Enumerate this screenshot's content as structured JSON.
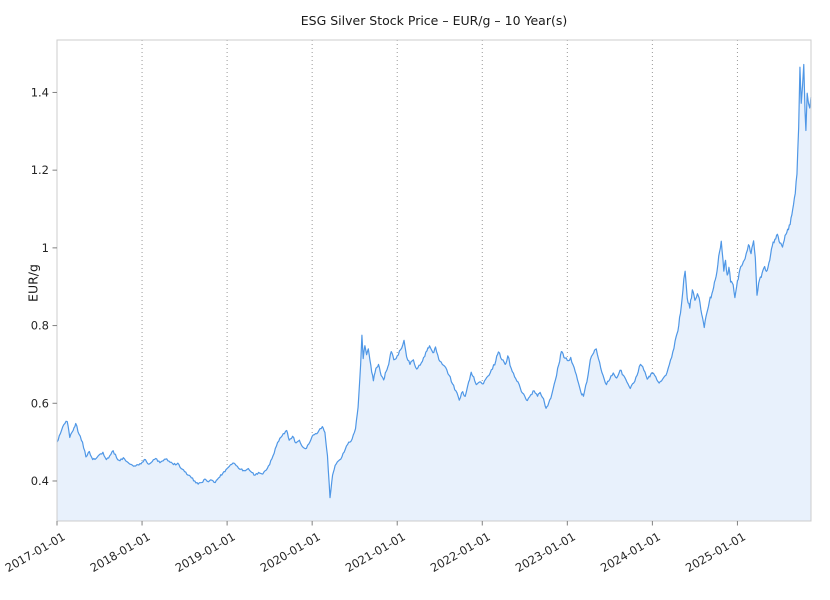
{
  "chart_data": {
    "type": "area",
    "title": "ESG Silver Stock Price – EUR/g – 10 Year(s)",
    "ylabel": "EUR/g",
    "xlabel": "",
    "grid": "vertical-dotted",
    "legend": "none",
    "xlim": [
      2017.0,
      2025.865
    ],
    "ylim": [
      0.297,
      1.535
    ],
    "x_ticks": [
      {
        "t": 2017,
        "label": "2017-01-01"
      },
      {
        "t": 2018,
        "label": "2018-01-01"
      },
      {
        "t": 2019,
        "label": "2019-01-01"
      },
      {
        "t": 2020,
        "label": "2020-01-01"
      },
      {
        "t": 2021,
        "label": "2021-01-01"
      },
      {
        "t": 2022,
        "label": "2022-01-01"
      },
      {
        "t": 2023,
        "label": "2023-01-01"
      },
      {
        "t": 2024,
        "label": "2024-01-01"
      },
      {
        "t": 2025,
        "label": "2025-01-01"
      }
    ],
    "y_ticks": [
      {
        "v": 0.4,
        "label": "0.4"
      },
      {
        "v": 0.6,
        "label": "0.6"
      },
      {
        "v": 0.8,
        "label": "0.8"
      },
      {
        "v": 1.0,
        "label": "1"
      },
      {
        "v": 1.2,
        "label": "1.2"
      },
      {
        "v": 1.4,
        "label": "1.4"
      }
    ],
    "colors": {
      "line": "#4f97e6",
      "fill": "#e8f1fc",
      "grid": "#999999",
      "spine": "#cccccc",
      "tick": "#808080",
      "text": "#262626"
    },
    "series": [
      {
        "name": "ESG Silver Stock Price (EUR/g)",
        "x_unit": "decimal_year",
        "points": [
          [
            2017.0,
            0.5
          ],
          [
            2017.04,
            0.522
          ],
          [
            2017.08,
            0.545
          ],
          [
            2017.12,
            0.553
          ],
          [
            2017.15,
            0.512
          ],
          [
            2017.19,
            0.53
          ],
          [
            2017.22,
            0.548
          ],
          [
            2017.26,
            0.52
          ],
          [
            2017.3,
            0.5
          ],
          [
            2017.34,
            0.462
          ],
          [
            2017.38,
            0.476
          ],
          [
            2017.42,
            0.455
          ],
          [
            2017.46,
            0.458
          ],
          [
            2017.5,
            0.468
          ],
          [
            2017.54,
            0.474
          ],
          [
            2017.58,
            0.455
          ],
          [
            2017.62,
            0.465
          ],
          [
            2017.66,
            0.478
          ],
          [
            2017.7,
            0.46
          ],
          [
            2017.74,
            0.452
          ],
          [
            2017.78,
            0.46
          ],
          [
            2017.82,
            0.45
          ],
          [
            2017.86,
            0.443
          ],
          [
            2017.9,
            0.438
          ],
          [
            2017.95,
            0.442
          ],
          [
            2018.0,
            0.448
          ],
          [
            2018.04,
            0.455
          ],
          [
            2018.08,
            0.443
          ],
          [
            2018.12,
            0.45
          ],
          [
            2018.16,
            0.458
          ],
          [
            2018.21,
            0.447
          ],
          [
            2018.25,
            0.452
          ],
          [
            2018.29,
            0.457
          ],
          [
            2018.33,
            0.448
          ],
          [
            2018.37,
            0.442
          ],
          [
            2018.42,
            0.446
          ],
          [
            2018.46,
            0.432
          ],
          [
            2018.5,
            0.424
          ],
          [
            2018.54,
            0.415
          ],
          [
            2018.58,
            0.408
          ],
          [
            2018.62,
            0.4
          ],
          [
            2018.66,
            0.392
          ],
          [
            2018.7,
            0.396
          ],
          [
            2018.74,
            0.405
          ],
          [
            2018.78,
            0.398
          ],
          [
            2018.82,
            0.402
          ],
          [
            2018.86,
            0.396
          ],
          [
            2018.9,
            0.408
          ],
          [
            2018.95,
            0.42
          ],
          [
            2019.0,
            0.432
          ],
          [
            2019.04,
            0.442
          ],
          [
            2019.08,
            0.446
          ],
          [
            2019.12,
            0.438
          ],
          [
            2019.16,
            0.43
          ],
          [
            2019.21,
            0.426
          ],
          [
            2019.25,
            0.432
          ],
          [
            2019.29,
            0.422
          ],
          [
            2019.33,
            0.415
          ],
          [
            2019.37,
            0.422
          ],
          [
            2019.42,
            0.418
          ],
          [
            2019.46,
            0.428
          ],
          [
            2019.5,
            0.442
          ],
          [
            2019.54,
            0.465
          ],
          [
            2019.58,
            0.49
          ],
          [
            2019.62,
            0.51
          ],
          [
            2019.66,
            0.522
          ],
          [
            2019.7,
            0.53
          ],
          [
            2019.73,
            0.505
          ],
          [
            2019.77,
            0.515
          ],
          [
            2019.81,
            0.498
          ],
          [
            2019.85,
            0.505
          ],
          [
            2019.88,
            0.49
          ],
          [
            2019.92,
            0.483
          ],
          [
            2019.96,
            0.495
          ],
          [
            2020.0,
            0.515
          ],
          [
            2020.04,
            0.522
          ],
          [
            2020.08,
            0.53
          ],
          [
            2020.12,
            0.54
          ],
          [
            2020.15,
            0.525
          ],
          [
            2020.18,
            0.465
          ],
          [
            2020.21,
            0.357
          ],
          [
            2020.24,
            0.415
          ],
          [
            2020.27,
            0.44
          ],
          [
            2020.31,
            0.452
          ],
          [
            2020.35,
            0.462
          ],
          [
            2020.39,
            0.482
          ],
          [
            2020.43,
            0.5
          ],
          [
            2020.47,
            0.508
          ],
          [
            2020.51,
            0.535
          ],
          [
            2020.54,
            0.59
          ],
          [
            2020.57,
            0.7
          ],
          [
            2020.585,
            0.775
          ],
          [
            2020.6,
            0.715
          ],
          [
            2020.62,
            0.748
          ],
          [
            2020.64,
            0.725
          ],
          [
            2020.66,
            0.74
          ],
          [
            2020.68,
            0.71
          ],
          [
            2020.7,
            0.68
          ],
          [
            2020.72,
            0.658
          ],
          [
            2020.75,
            0.69
          ],
          [
            2020.78,
            0.7
          ],
          [
            2020.81,
            0.672
          ],
          [
            2020.84,
            0.66
          ],
          [
            2020.87,
            0.682
          ],
          [
            2020.9,
            0.7
          ],
          [
            2020.93,
            0.733
          ],
          [
            2020.96,
            0.712
          ],
          [
            2021.0,
            0.722
          ],
          [
            2021.04,
            0.738
          ],
          [
            2021.08,
            0.762
          ],
          [
            2021.11,
            0.72
          ],
          [
            2021.15,
            0.7
          ],
          [
            2021.19,
            0.712
          ],
          [
            2021.23,
            0.688
          ],
          [
            2021.27,
            0.698
          ],
          [
            2021.31,
            0.718
          ],
          [
            2021.35,
            0.735
          ],
          [
            2021.38,
            0.748
          ],
          [
            2021.42,
            0.73
          ],
          [
            2021.45,
            0.745
          ],
          [
            2021.49,
            0.712
          ],
          [
            2021.53,
            0.7
          ],
          [
            2021.57,
            0.692
          ],
          [
            2021.61,
            0.672
          ],
          [
            2021.65,
            0.65
          ],
          [
            2021.69,
            0.632
          ],
          [
            2021.73,
            0.608
          ],
          [
            2021.77,
            0.63
          ],
          [
            2021.8,
            0.618
          ],
          [
            2021.84,
            0.655
          ],
          [
            2021.87,
            0.68
          ],
          [
            2021.9,
            0.668
          ],
          [
            2021.93,
            0.648
          ],
          [
            2021.97,
            0.655
          ],
          [
            2022.0,
            0.65
          ],
          [
            2022.04,
            0.662
          ],
          [
            2022.08,
            0.672
          ],
          [
            2022.12,
            0.688
          ],
          [
            2022.16,
            0.71
          ],
          [
            2022.19,
            0.732
          ],
          [
            2022.23,
            0.712
          ],
          [
            2022.27,
            0.7
          ],
          [
            2022.3,
            0.722
          ],
          [
            2022.34,
            0.69
          ],
          [
            2022.38,
            0.668
          ],
          [
            2022.42,
            0.655
          ],
          [
            2022.46,
            0.63
          ],
          [
            2022.5,
            0.618
          ],
          [
            2022.53,
            0.607
          ],
          [
            2022.57,
            0.622
          ],
          [
            2022.61,
            0.632
          ],
          [
            2022.65,
            0.618
          ],
          [
            2022.68,
            0.628
          ],
          [
            2022.72,
            0.612
          ],
          [
            2022.75,
            0.587
          ],
          [
            2022.78,
            0.6
          ],
          [
            2022.82,
            0.625
          ],
          [
            2022.86,
            0.66
          ],
          [
            2022.9,
            0.7
          ],
          [
            2022.93,
            0.733
          ],
          [
            2022.96,
            0.718
          ],
          [
            2023.0,
            0.71
          ],
          [
            2023.04,
            0.718
          ],
          [
            2023.08,
            0.692
          ],
          [
            2023.12,
            0.66
          ],
          [
            2023.16,
            0.628
          ],
          [
            2023.19,
            0.618
          ],
          [
            2023.23,
            0.655
          ],
          [
            2023.27,
            0.712
          ],
          [
            2023.31,
            0.73
          ],
          [
            2023.34,
            0.74
          ],
          [
            2023.38,
            0.705
          ],
          [
            2023.42,
            0.672
          ],
          [
            2023.46,
            0.648
          ],
          [
            2023.5,
            0.662
          ],
          [
            2023.54,
            0.678
          ],
          [
            2023.58,
            0.665
          ],
          [
            2023.62,
            0.685
          ],
          [
            2023.66,
            0.672
          ],
          [
            2023.7,
            0.655
          ],
          [
            2023.74,
            0.638
          ],
          [
            2023.78,
            0.652
          ],
          [
            2023.82,
            0.672
          ],
          [
            2023.86,
            0.7
          ],
          [
            2023.9,
            0.685
          ],
          [
            2023.94,
            0.662
          ],
          [
            2023.97,
            0.668
          ],
          [
            2024.0,
            0.677
          ],
          [
            2024.04,
            0.668
          ],
          [
            2024.08,
            0.652
          ],
          [
            2024.12,
            0.662
          ],
          [
            2024.16,
            0.672
          ],
          [
            2024.2,
            0.7
          ],
          [
            2024.24,
            0.732
          ],
          [
            2024.28,
            0.772
          ],
          [
            2024.31,
            0.8
          ],
          [
            2024.34,
            0.85
          ],
          [
            2024.37,
            0.92
          ],
          [
            2024.385,
            0.94
          ],
          [
            2024.41,
            0.87
          ],
          [
            2024.44,
            0.845
          ],
          [
            2024.47,
            0.892
          ],
          [
            2024.5,
            0.865
          ],
          [
            2024.53,
            0.882
          ],
          [
            2024.56,
            0.858
          ],
          [
            2024.59,
            0.82
          ],
          [
            2024.61,
            0.795
          ],
          [
            2024.64,
            0.832
          ],
          [
            2024.67,
            0.862
          ],
          [
            2024.7,
            0.882
          ],
          [
            2024.73,
            0.912
          ],
          [
            2024.76,
            0.94
          ],
          [
            2024.79,
            0.99
          ],
          [
            2024.81,
            1.017
          ],
          [
            2024.84,
            0.94
          ],
          [
            2024.86,
            0.968
          ],
          [
            2024.88,
            0.93
          ],
          [
            2024.9,
            0.95
          ],
          [
            2024.92,
            0.912
          ],
          [
            2024.95,
            0.905
          ],
          [
            2024.97,
            0.872
          ],
          [
            2025.0,
            0.915
          ],
          [
            2025.03,
            0.945
          ],
          [
            2025.06,
            0.958
          ],
          [
            2025.09,
            0.972
          ],
          [
            2025.13,
            1.008
          ],
          [
            2025.16,
            0.985
          ],
          [
            2025.19,
            1.018
          ],
          [
            2025.21,
            0.975
          ],
          [
            2025.23,
            0.878
          ],
          [
            2025.26,
            0.918
          ],
          [
            2025.29,
            0.935
          ],
          [
            2025.32,
            0.952
          ],
          [
            2025.35,
            0.942
          ],
          [
            2025.38,
            0.968
          ],
          [
            2025.41,
            1.005
          ],
          [
            2025.44,
            1.022
          ],
          [
            2025.47,
            1.035
          ],
          [
            2025.5,
            1.012
          ],
          [
            2025.53,
            1.002
          ],
          [
            2025.56,
            1.032
          ],
          [
            2025.59,
            1.048
          ],
          [
            2025.62,
            1.06
          ],
          [
            2025.64,
            1.085
          ],
          [
            2025.66,
            1.112
          ],
          [
            2025.68,
            1.14
          ],
          [
            2025.7,
            1.19
          ],
          [
            2025.72,
            1.31
          ],
          [
            2025.735,
            1.465
          ],
          [
            2025.75,
            1.372
          ],
          [
            2025.765,
            1.415
          ],
          [
            2025.78,
            1.472
          ],
          [
            2025.795,
            1.35
          ],
          [
            2025.805,
            1.302
          ],
          [
            2025.82,
            1.398
          ],
          [
            2025.835,
            1.372
          ],
          [
            2025.85,
            1.36
          ],
          [
            2025.865,
            1.388
          ]
        ]
      }
    ]
  }
}
